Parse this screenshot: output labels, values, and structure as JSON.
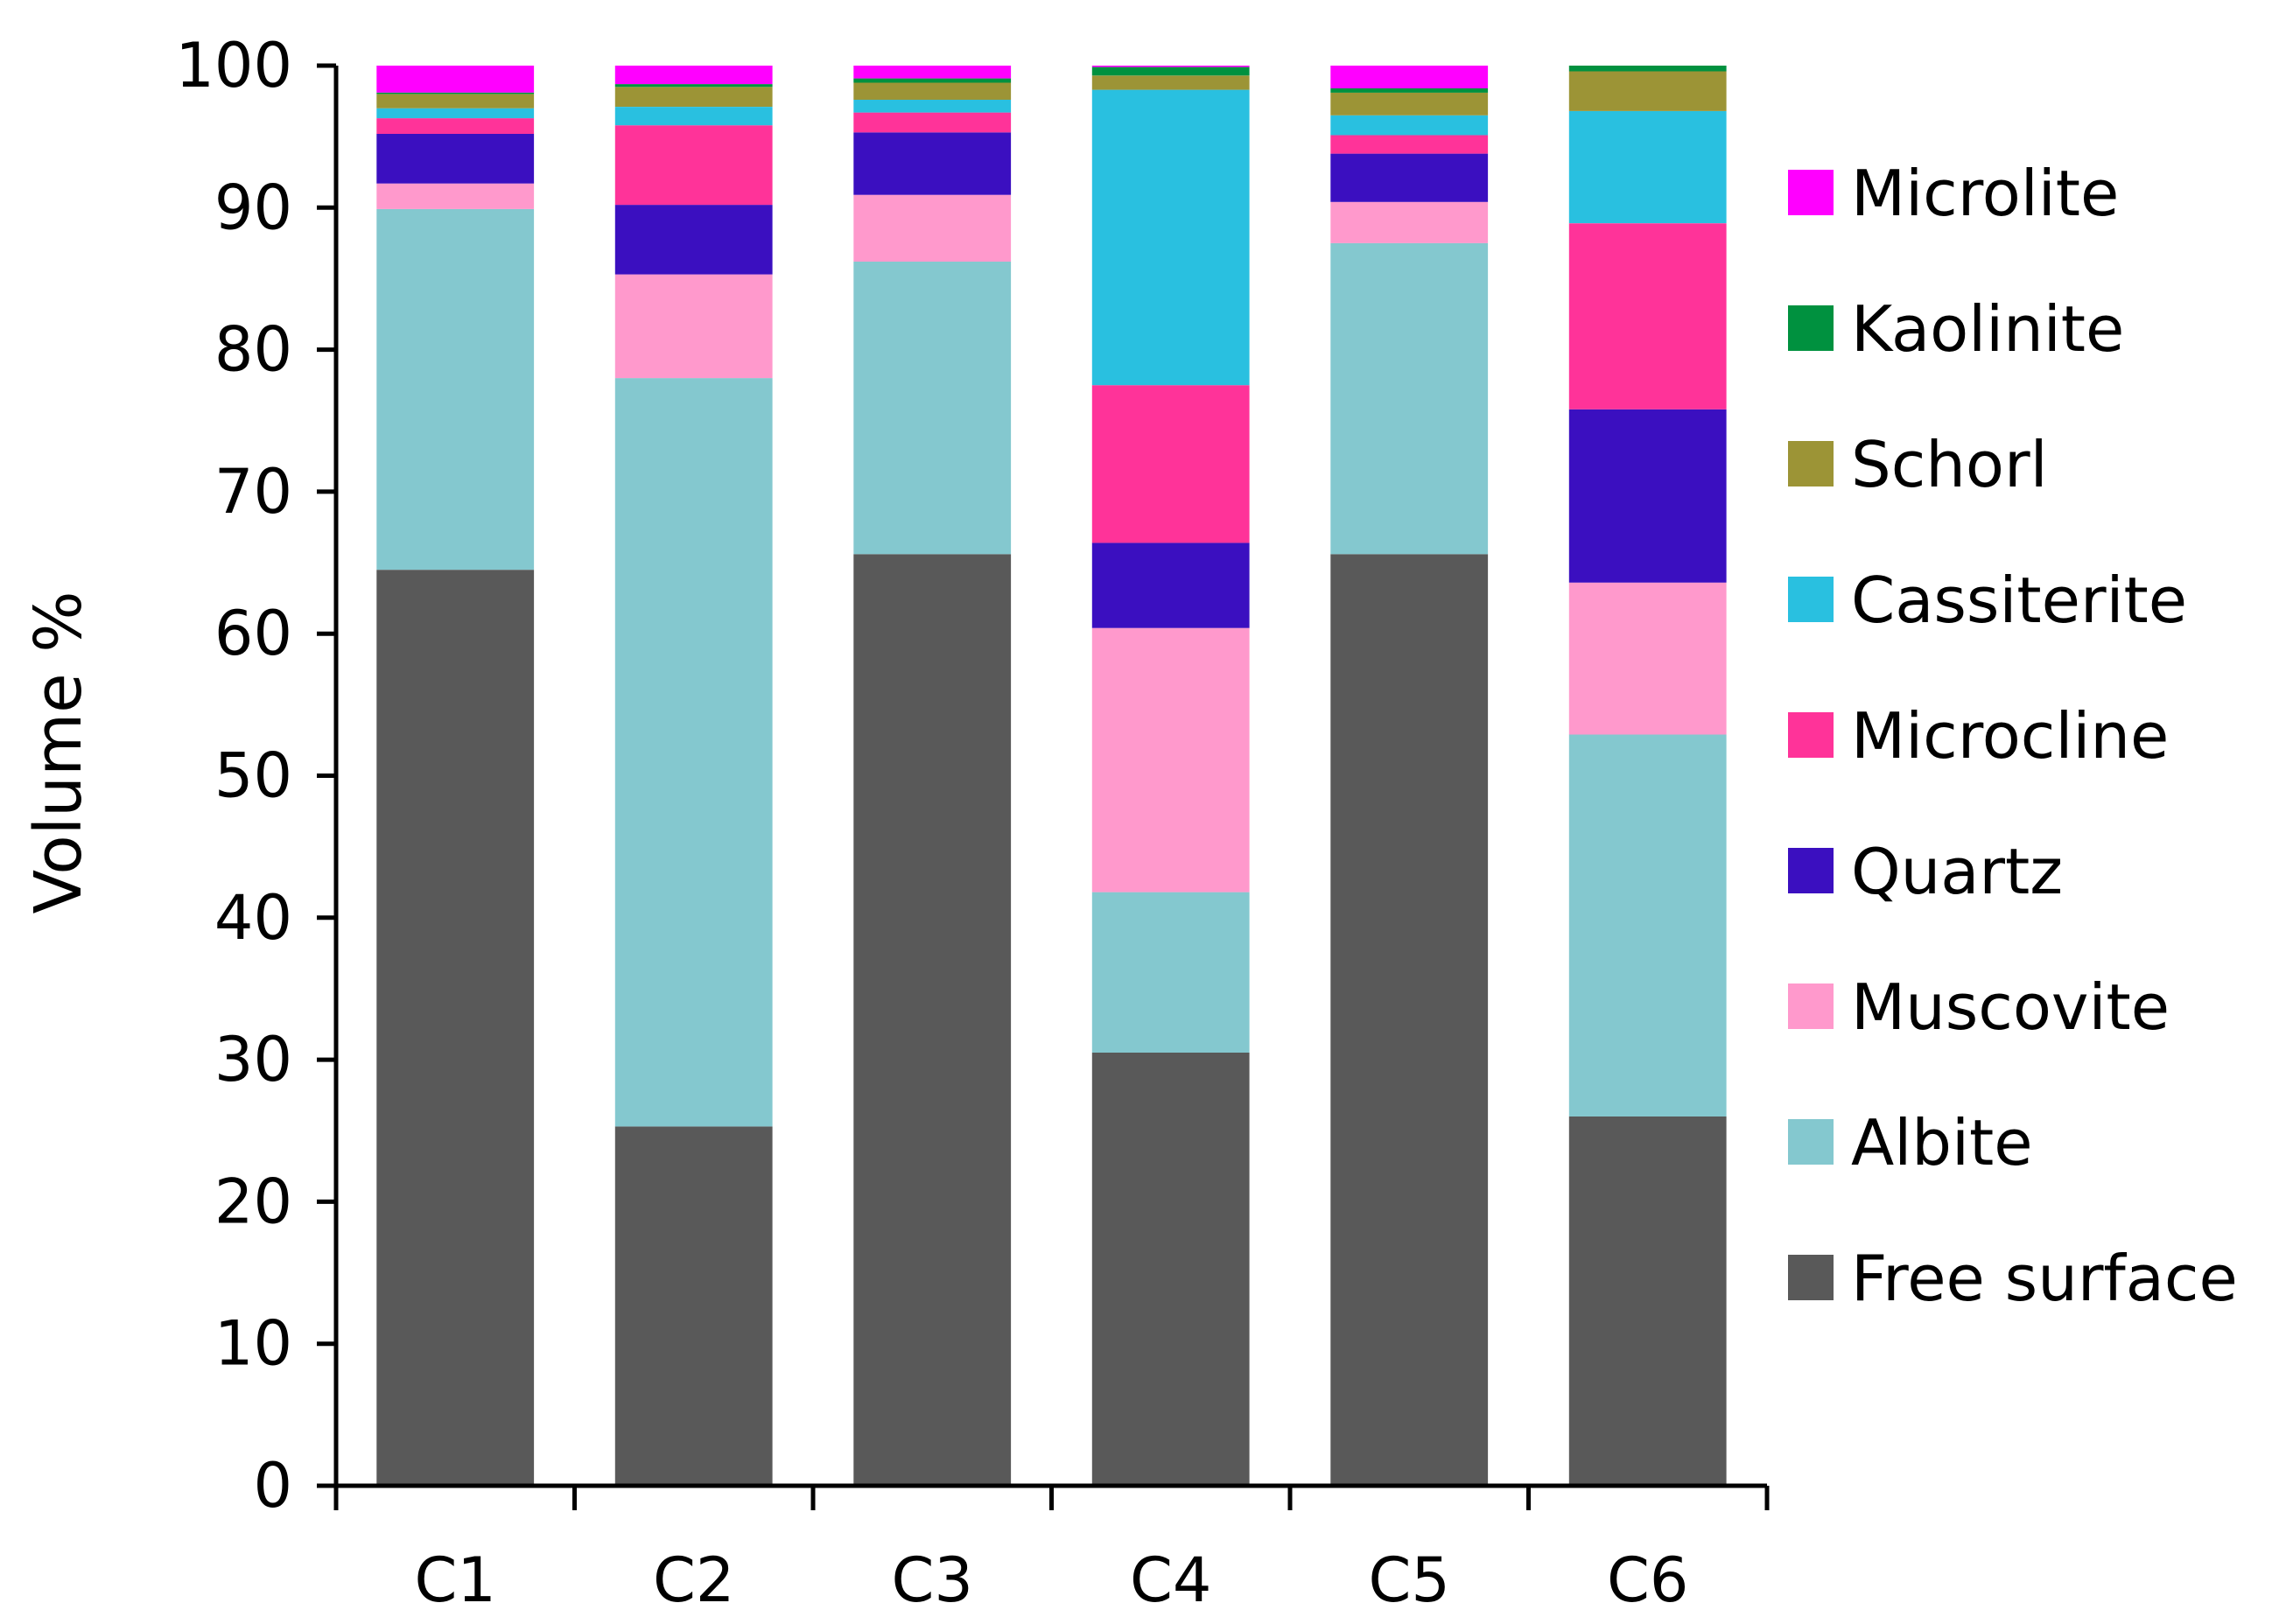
{
  "chart_data": {
    "type": "bar",
    "stacked": true,
    "title": "",
    "xlabel": "",
    "ylabel": "Volume %",
    "ylim": [
      0,
      100
    ],
    "yticks": [
      0,
      10,
      20,
      30,
      40,
      50,
      60,
      70,
      80,
      90,
      100
    ],
    "grid": false,
    "legend_position": "right",
    "categories": [
      "C1",
      "C2",
      "C3",
      "C4",
      "C5",
      "C6"
    ],
    "series": [
      {
        "name": "Free surface",
        "color": "#595959",
        "values": [
          64.5,
          25.3,
          65.6,
          30.5,
          65.6,
          26.0
        ]
      },
      {
        "name": "Albite",
        "color": "#84C8CF",
        "values": [
          25.4,
          52.7,
          20.6,
          11.3,
          21.9,
          26.9
        ]
      },
      {
        "name": "Muscovite",
        "color": "#FF99CC",
        "values": [
          1.8,
          7.3,
          4.7,
          18.6,
          2.9,
          10.7
        ]
      },
      {
        "name": "Quartz",
        "color": "#3B0FC0",
        "values": [
          3.5,
          4.9,
          4.4,
          6.0,
          3.4,
          12.2
        ]
      },
      {
        "name": "Microcline",
        "color": "#FF3399",
        "values": [
          1.1,
          5.6,
          1.4,
          11.1,
          1.3,
          13.1
        ]
      },
      {
        "name": "Cassiterite",
        "color": "#29C0E0",
        "values": [
          0.7,
          1.3,
          0.9,
          20.8,
          1.4,
          7.9
        ]
      },
      {
        "name": "Schorl",
        "color": "#9C9436",
        "values": [
          1.0,
          1.4,
          1.2,
          1.0,
          1.6,
          2.8
        ]
      },
      {
        "name": "Kaolinite",
        "color": "#00913F",
        "values": [
          0.1,
          0.2,
          0.3,
          0.6,
          0.3,
          0.4
        ]
      },
      {
        "name": "Microlite",
        "color": "#FF00FF",
        "values": [
          1.9,
          1.3,
          0.9,
          0.2,
          1.6,
          0.0
        ]
      }
    ]
  }
}
